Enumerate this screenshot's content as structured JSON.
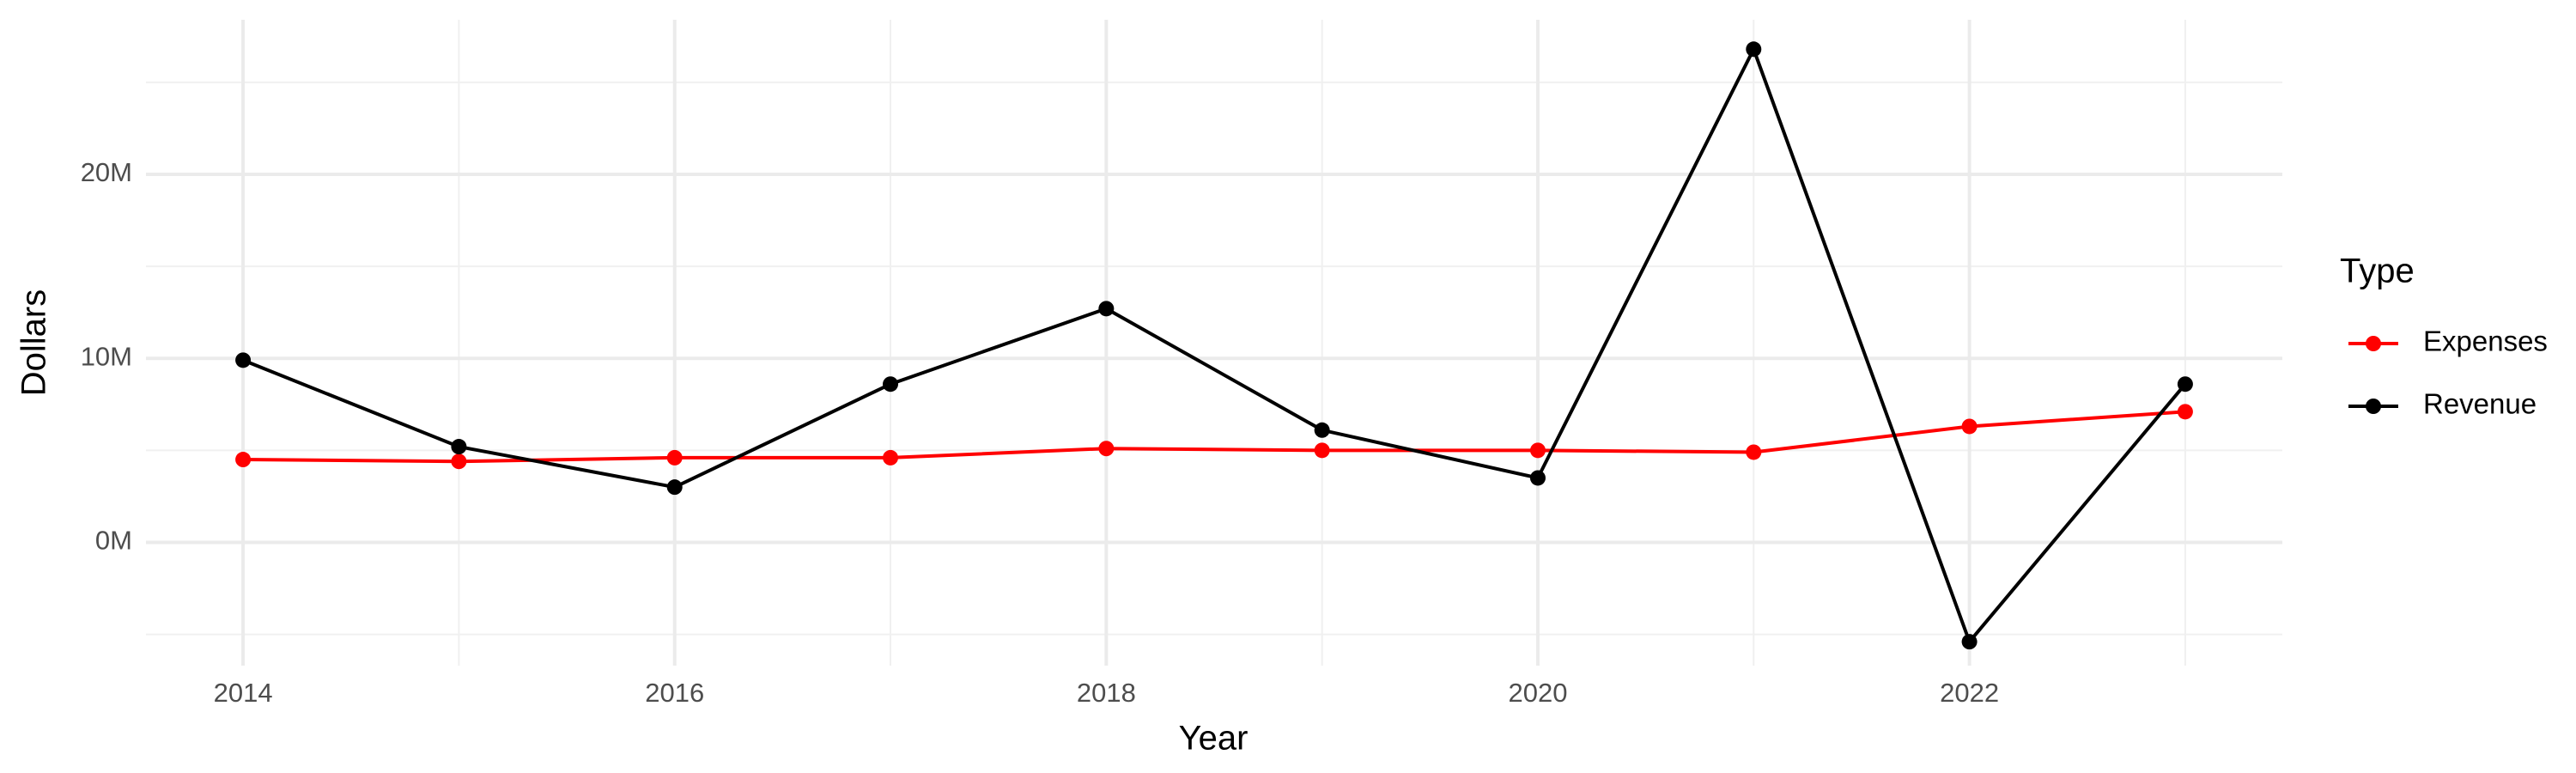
{
  "chart_data": {
    "type": "line",
    "x_label": "Year",
    "y_label": "Dollars",
    "x": [
      2014,
      2015,
      2016,
      2017,
      2018,
      2019,
      2020,
      2021,
      2022,
      2023
    ],
    "series": [
      {
        "name": "Expenses",
        "color": "#ff0000",
        "values": [
          4500000,
          4400000,
          4600000,
          4600000,
          5100000,
          5000000,
          5000000,
          4900000,
          6300000,
          7100000
        ]
      },
      {
        "name": "Revenue",
        "color": "#000000",
        "values": [
          9900000,
          5200000,
          3000000,
          8600000,
          12700000,
          6100000,
          3500000,
          26800000,
          -5400000,
          8600000
        ]
      }
    ],
    "xlim": [
      2013.55,
      2023.45
    ],
    "xticks": [
      2014,
      2016,
      2018,
      2020,
      2022
    ],
    "ylim": [
      -6700000,
      28400000
    ],
    "yticks": [
      {
        "value": 0,
        "label": "0M"
      },
      {
        "value": 10000000,
        "label": "10M"
      },
      {
        "value": 20000000,
        "label": "20M"
      }
    ],
    "grid": true,
    "legend_title": "Type",
    "legend_position": "right"
  }
}
